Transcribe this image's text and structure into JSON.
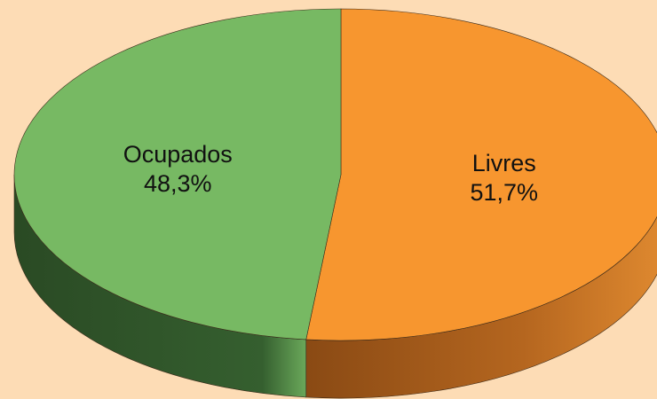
{
  "chart_data": {
    "type": "pie",
    "categories": [
      "Livres",
      "Ocupados"
    ],
    "values": [
      51.7,
      48.3
    ],
    "value_labels": [
      "51,7%",
      "48,3%"
    ],
    "colors": [
      "#f7962f",
      "#77b963"
    ]
  }
}
